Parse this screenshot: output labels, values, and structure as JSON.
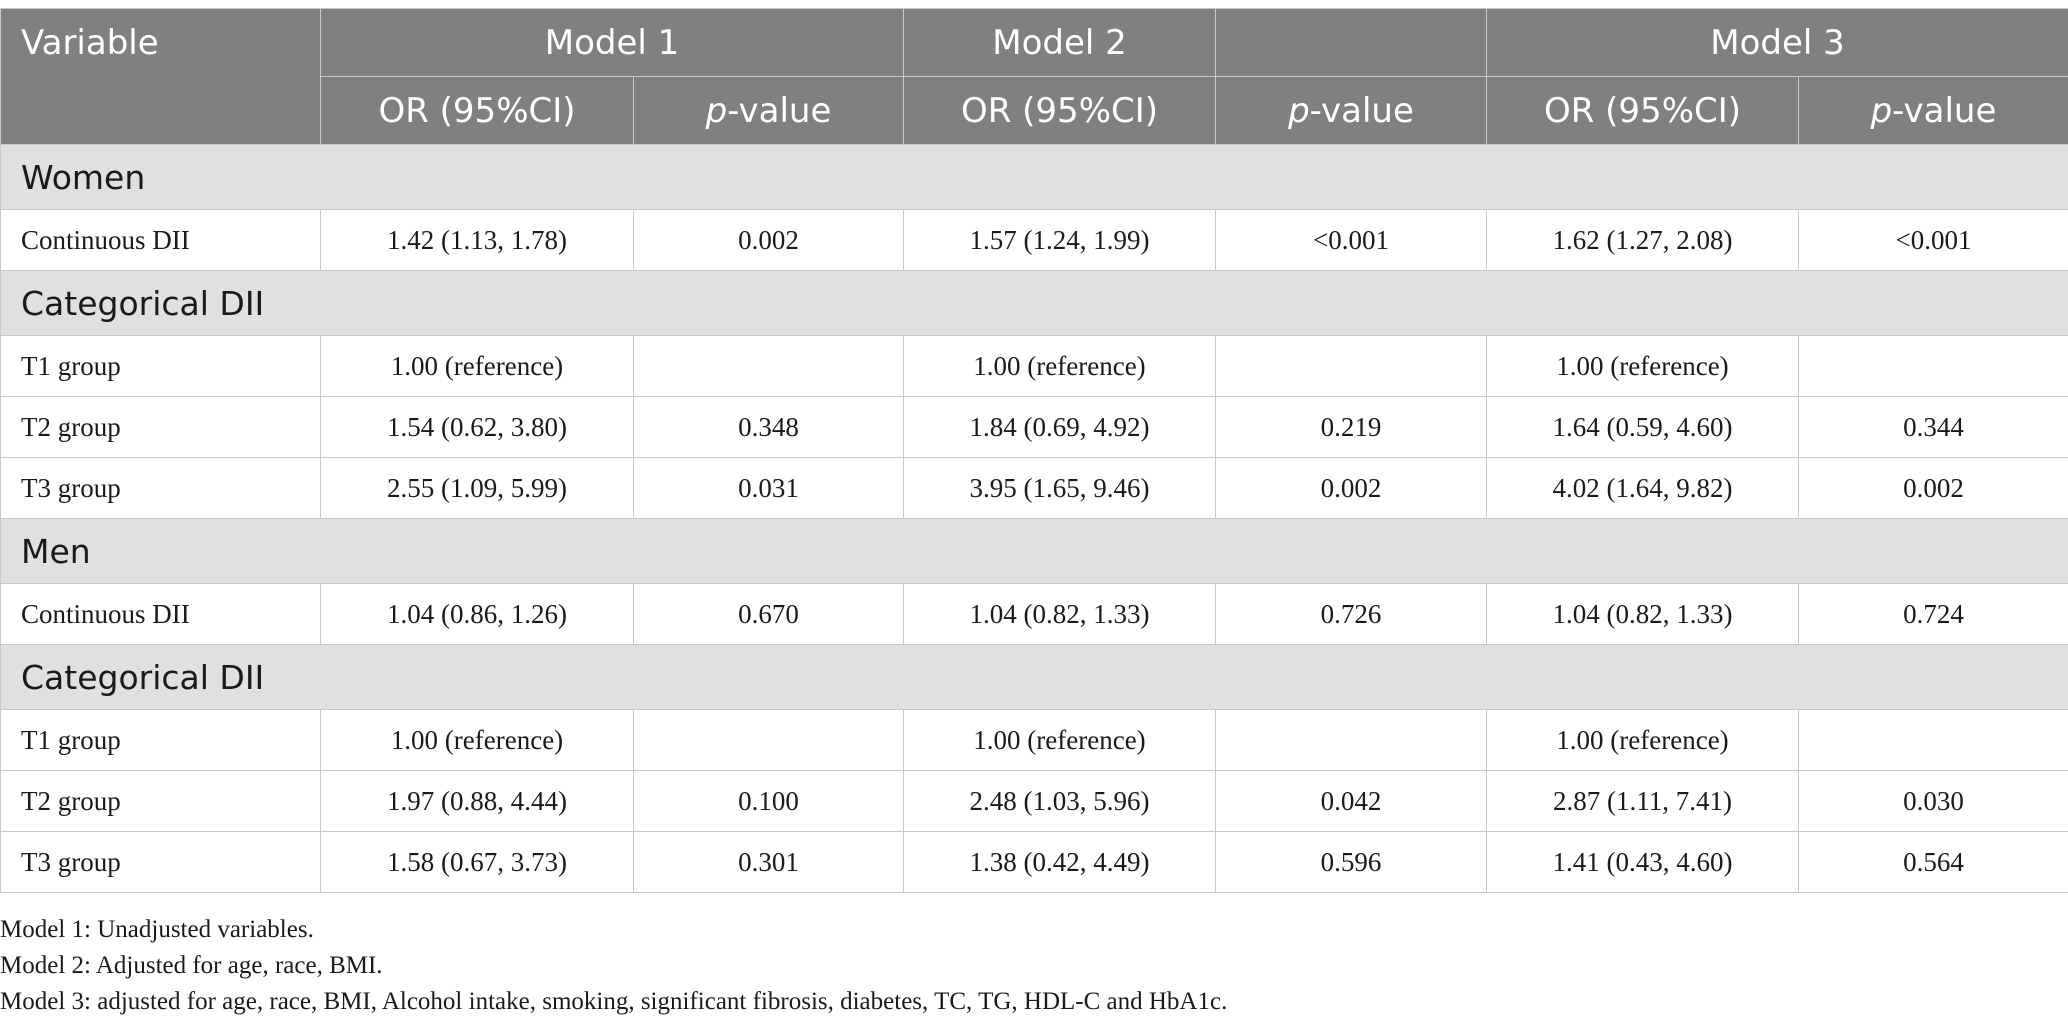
{
  "header": {
    "variable": "Variable",
    "models": [
      "Model 1",
      "Model 2",
      "Model 3"
    ],
    "or_label": "OR (95%CI)",
    "p_italic": "p",
    "p_suffix": "-value"
  },
  "sections": [
    {
      "title": "Women",
      "rows": [
        {
          "label": "Continuous DII",
          "m1_or": "1.42 (1.13, 1.78)",
          "m1_p": "0.002",
          "m2_or": "1.57 (1.24, 1.99)",
          "m2_p": "<0.001",
          "m3_or": "1.62 (1.27, 2.08)",
          "m3_p": "<0.001"
        }
      ]
    },
    {
      "title": "Categorical DII",
      "rows": [
        {
          "label": "T1 group",
          "m1_or": "1.00 (reference)",
          "m1_p": "",
          "m2_or": "1.00 (reference)",
          "m2_p": "",
          "m3_or": "1.00 (reference)",
          "m3_p": ""
        },
        {
          "label": "T2 group",
          "m1_or": "1.54 (0.62, 3.80)",
          "m1_p": "0.348",
          "m2_or": "1.84 (0.69, 4.92)",
          "m2_p": "0.219",
          "m3_or": "1.64 (0.59, 4.60)",
          "m3_p": "0.344"
        },
        {
          "label": "T3 group",
          "m1_or": "2.55 (1.09, 5.99)",
          "m1_p": "0.031",
          "m2_or": "3.95 (1.65, 9.46)",
          "m2_p": "0.002",
          "m3_or": "4.02 (1.64, 9.82)",
          "m3_p": "0.002"
        }
      ]
    },
    {
      "title": "Men",
      "rows": [
        {
          "label": "Continuous DII",
          "m1_or": "1.04 (0.86, 1.26)",
          "m1_p": "0.670",
          "m2_or": "1.04 (0.82, 1.33)",
          "m2_p": "0.726",
          "m3_or": "1.04 (0.82, 1.33)",
          "m3_p": "0.724"
        }
      ]
    },
    {
      "title": "Categorical DII",
      "rows": [
        {
          "label": "T1 group",
          "m1_or": "1.00 (reference)",
          "m1_p": "",
          "m2_or": "1.00 (reference)",
          "m2_p": "",
          "m3_or": "1.00 (reference)",
          "m3_p": ""
        },
        {
          "label": "T2 group",
          "m1_or": "1.97 (0.88, 4.44)",
          "m1_p": "0.100",
          "m2_or": "2.48 (1.03, 5.96)",
          "m2_p": "0.042",
          "m3_or": "2.87 (1.11, 7.41)",
          "m3_p": "0.030"
        },
        {
          "label": "T3 group",
          "m1_or": "1.58 (0.67, 3.73)",
          "m1_p": "0.301",
          "m2_or": "1.38 (0.42, 4.49)",
          "m2_p": "0.596",
          "m3_or": "1.41 (0.43, 4.60)",
          "m3_p": "0.564"
        }
      ]
    }
  ],
  "notes": [
    "Model 1: Unadjusted variables.",
    "Model 2: Adjusted for age, race, BMI.",
    "Model 3: adjusted for age, race, BMI, Alcohol intake, smoking, significant fibrosis, diabetes, TC, TG, HDL-C and HbA1c."
  ]
}
